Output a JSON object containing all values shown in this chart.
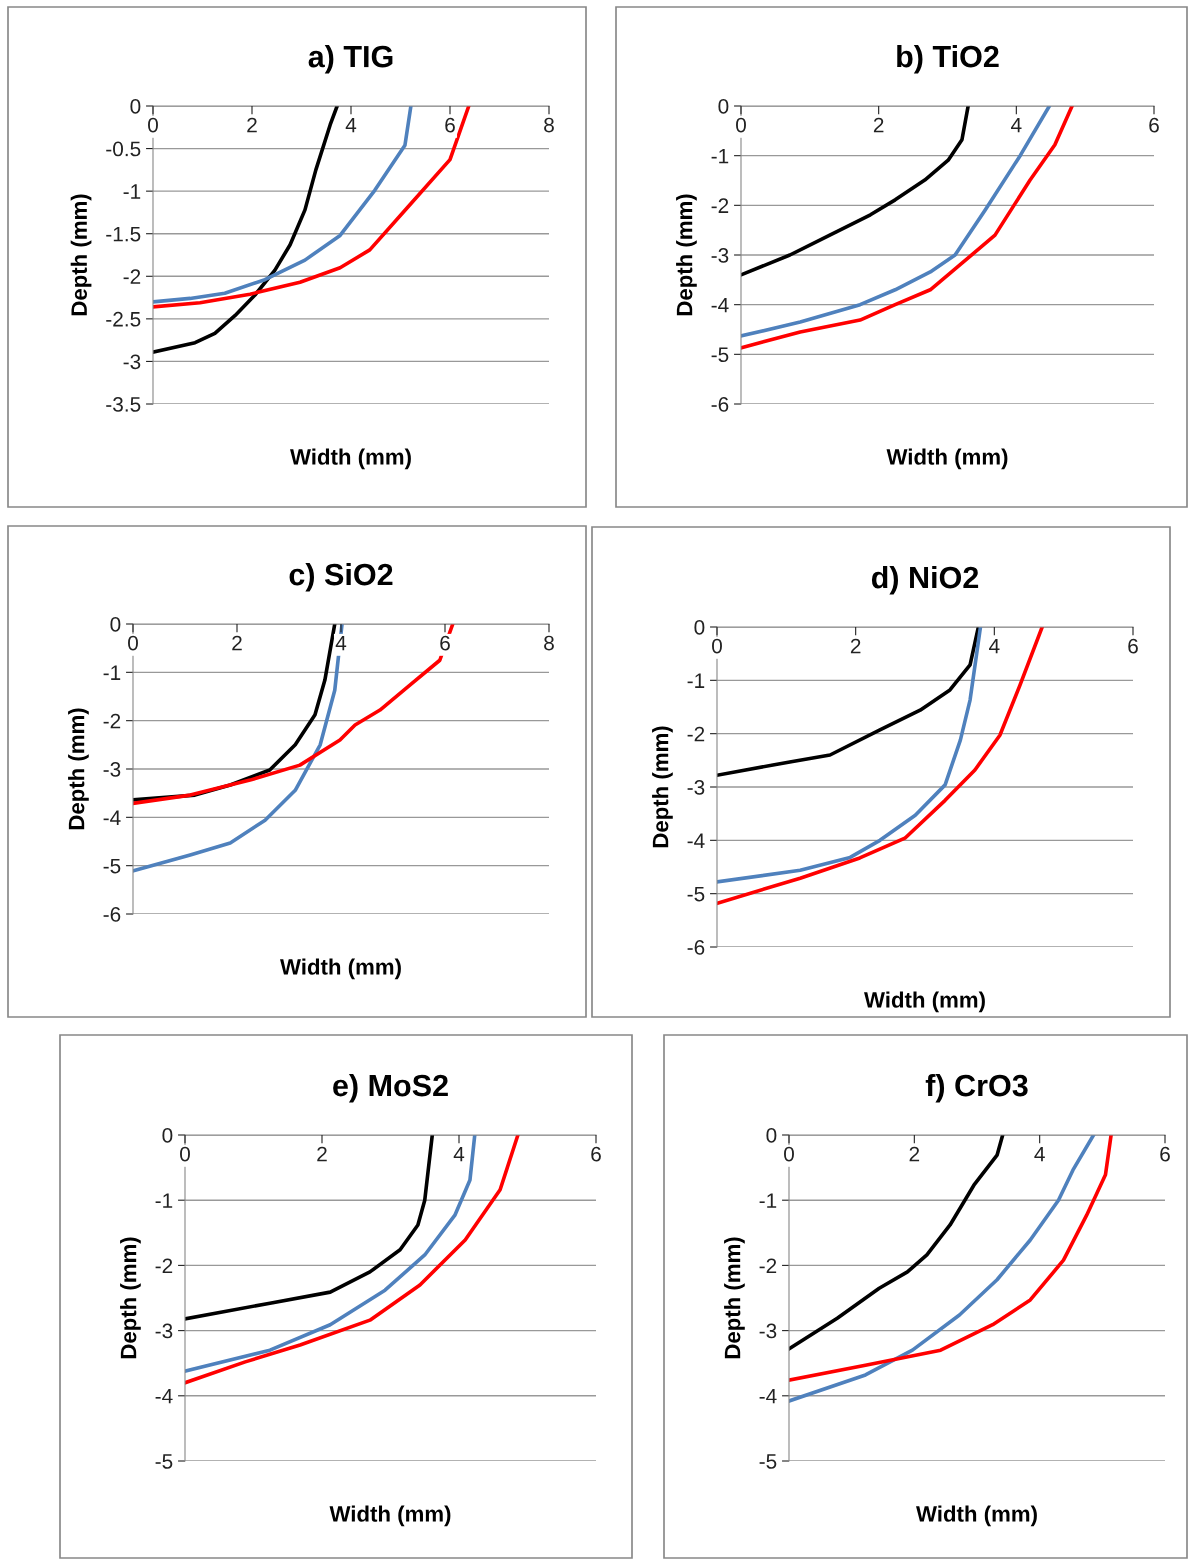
{
  "chart_data": [
    {
      "type": "line",
      "title": "a) TIG",
      "xlabel": "Width (mm)",
      "ylabel": "Depth (mm)",
      "xlim": [
        0,
        8
      ],
      "xticks": [
        0,
        2,
        4,
        6,
        8
      ],
      "ylim": [
        -3.5,
        0
      ],
      "yticks": [
        -3.5,
        -3,
        -2.5,
        -2,
        -1.5,
        -1,
        -0.5,
        0
      ],
      "grid": "y",
      "series": [
        {
          "color": "#000000",
          "x": [
            3.72,
            3.58,
            3.29,
            3.07,
            2.77,
            2.46,
            2.06,
            1.66,
            1.25,
            0.85,
            0
          ],
          "values": [
            0,
            -0.22,
            -0.75,
            -1.22,
            -1.63,
            -1.93,
            -2.22,
            -2.46,
            -2.67,
            -2.78,
            -2.89
          ]
        },
        {
          "color": "#4f81bd",
          "x": [
            5.21,
            5.09,
            4.48,
            3.78,
            3.07,
            2.26,
            1.45,
            0.75,
            0
          ],
          "values": [
            0,
            -0.46,
            -0.99,
            -1.52,
            -1.81,
            -2.04,
            -2.2,
            -2.26,
            -2.3
          ]
        },
        {
          "color": "#ff0000",
          "x": [
            6.38,
            6.0,
            5.19,
            4.38,
            3.78,
            2.97,
            1.96,
            0.95,
            0
          ],
          "values": [
            0,
            -0.63,
            -1.16,
            -1.69,
            -1.9,
            -2.07,
            -2.21,
            -2.31,
            -2.36
          ]
        }
      ]
    },
    {
      "type": "line",
      "title": "b) TiO2",
      "xlabel": "Width (mm)",
      "ylabel": "Depth (mm)",
      "xlim": [
        0,
        6
      ],
      "xticks": [
        0,
        2,
        4,
        6
      ],
      "ylim": [
        -6,
        0
      ],
      "yticks": [
        -6,
        -5,
        -4,
        -3,
        -2,
        -1,
        0
      ],
      "grid": "y",
      "series": [
        {
          "color": "#000000",
          "x": [
            3.3,
            3.21,
            3.01,
            2.67,
            2.24,
            1.88,
            1.29,
            0.71,
            0
          ],
          "values": [
            0,
            -0.68,
            -1.09,
            -1.49,
            -1.89,
            -2.19,
            -2.6,
            -3.0,
            -3.4
          ]
        },
        {
          "color": "#4f81bd",
          "x": [
            4.48,
            4.06,
            3.55,
            3.11,
            2.75,
            2.24,
            1.73,
            0.86,
            0
          ],
          "values": [
            0,
            -0.99,
            -2.09,
            -3.0,
            -3.34,
            -3.7,
            -4.0,
            -4.35,
            -4.63
          ]
        },
        {
          "color": "#ff0000",
          "x": [
            4.81,
            4.56,
            4.2,
            3.69,
            3.18,
            2.75,
            2.24,
            1.73,
            0.86,
            0
          ],
          "values": [
            0,
            -0.78,
            -1.49,
            -2.6,
            -3.2,
            -3.7,
            -4.0,
            -4.31,
            -4.55,
            -4.87
          ]
        }
      ]
    },
    {
      "type": "line",
      "title": "c) SiO2",
      "xlabel": "Width (mm)",
      "ylabel": "Depth (mm)",
      "xlim": [
        0,
        8
      ],
      "xticks": [
        0,
        2,
        4,
        6,
        8
      ],
      "ylim": [
        -6,
        0
      ],
      "yticks": [
        -6,
        -5,
        -4,
        -3,
        -2,
        -1,
        0
      ],
      "grid": "y",
      "series": [
        {
          "color": "#000000",
          "x": [
            3.88,
            3.69,
            3.5,
            3.12,
            2.63,
            1.87,
            1.19,
            0
          ],
          "values": [
            0,
            -1.16,
            -1.88,
            -2.5,
            -3.02,
            -3.33,
            -3.54,
            -3.64
          ]
        },
        {
          "color": "#4f81bd",
          "x": [
            4.02,
            3.88,
            3.6,
            3.12,
            2.54,
            1.87,
            1.1,
            0
          ],
          "values": [
            0,
            -1.37,
            -2.5,
            -3.44,
            -4.06,
            -4.53,
            -4.78,
            -5.11
          ]
        },
        {
          "color": "#ff0000",
          "x": [
            6.15,
            5.9,
            5.33,
            4.75,
            4.27,
            3.98,
            3.21,
            2.25,
            1.1,
            0
          ],
          "values": [
            0,
            -0.75,
            -1.26,
            -1.78,
            -2.09,
            -2.4,
            -2.92,
            -3.23,
            -3.54,
            -3.71
          ]
        }
      ]
    },
    {
      "type": "line",
      "title": "d) NiO2",
      "xlabel": "Width (mm)",
      "ylabel": "Depth (mm)",
      "xlim": [
        0,
        6
      ],
      "xticks": [
        0,
        2,
        4,
        6
      ],
      "ylim": [
        -6,
        0
      ],
      "yticks": [
        -6,
        -5,
        -4,
        -3,
        -2,
        -1,
        0
      ],
      "grid": "y",
      "series": [
        {
          "color": "#000000",
          "x": [
            3.77,
            3.65,
            3.36,
            2.93,
            2.35,
            1.63,
            1.05,
            0
          ],
          "values": [
            0,
            -0.71,
            -1.18,
            -1.56,
            -1.93,
            -2.4,
            -2.53,
            -2.78
          ]
        },
        {
          "color": "#4f81bd",
          "x": [
            3.8,
            3.65,
            3.51,
            3.29,
            2.86,
            2.35,
            1.92,
            1.2,
            0
          ],
          "values": [
            0,
            -1.37,
            -2.12,
            -2.96,
            -3.53,
            -4.0,
            -4.32,
            -4.56,
            -4.78
          ]
        },
        {
          "color": "#ff0000",
          "x": [
            4.69,
            4.37,
            4.08,
            3.72,
            3.29,
            2.71,
            2.06,
            1.2,
            0
          ],
          "values": [
            0,
            -1.09,
            -2.03,
            -2.68,
            -3.25,
            -3.96,
            -4.33,
            -4.71,
            -5.18
          ]
        }
      ]
    },
    {
      "type": "line",
      "title": "e) MoS2",
      "xlabel": "Width (mm)",
      "ylabel": "Depth (mm)",
      "xlim": [
        0,
        6
      ],
      "xticks": [
        0,
        2,
        4,
        6
      ],
      "ylim": [
        -5,
        0
      ],
      "yticks": [
        -5,
        -4,
        -3,
        -2,
        -1,
        0
      ],
      "grid": "y",
      "series": [
        {
          "color": "#000000",
          "x": [
            3.61,
            3.5,
            3.4,
            3.14,
            2.7,
            2.12,
            1.24,
            0
          ],
          "values": [
            0,
            -1.0,
            -1.38,
            -1.76,
            -2.1,
            -2.41,
            -2.58,
            -2.82
          ]
        },
        {
          "color": "#4f81bd",
          "x": [
            4.23,
            4.16,
            3.94,
            3.5,
            2.92,
            2.12,
            1.24,
            0
          ],
          "values": [
            0,
            -0.69,
            -1.23,
            -1.84,
            -2.38,
            -2.91,
            -3.3,
            -3.62
          ]
        },
        {
          "color": "#ff0000",
          "x": [
            4.86,
            4.6,
            4.09,
            3.43,
            2.7,
            1.68,
            0.88,
            0
          ],
          "values": [
            0,
            -0.84,
            -1.61,
            -2.3,
            -2.84,
            -3.22,
            -3.48,
            -3.8
          ]
        }
      ]
    },
    {
      "type": "line",
      "title": "f) CrO3",
      "xlabel": "Width (mm)",
      "ylabel": "Depth (mm)",
      "xlim": [
        0,
        6
      ],
      "xticks": [
        0,
        2,
        4,
        6
      ],
      "ylim": [
        -5,
        0
      ],
      "yticks": [
        -5,
        -4,
        -3,
        -2,
        -1,
        0
      ],
      "grid": "y",
      "series": [
        {
          "color": "#000000",
          "x": [
            3.41,
            3.32,
            2.95,
            2.57,
            2.2,
            1.89,
            1.44,
            0.77,
            0
          ],
          "values": [
            0,
            -0.31,
            -0.77,
            -1.38,
            -1.84,
            -2.1,
            -2.35,
            -2.81,
            -3.28
          ]
        },
        {
          "color": "#4f81bd",
          "x": [
            4.86,
            4.53,
            4.3,
            3.85,
            3.32,
            2.72,
            1.97,
            1.22,
            0
          ],
          "values": [
            0,
            -0.54,
            -1.0,
            -1.61,
            -2.22,
            -2.76,
            -3.3,
            -3.68,
            -4.08
          ]
        },
        {
          "color": "#ff0000",
          "x": [
            5.14,
            5.05,
            4.75,
            4.38,
            3.85,
            3.25,
            2.42,
            1.22,
            0
          ],
          "values": [
            0,
            -0.61,
            -1.23,
            -1.92,
            -2.53,
            -2.91,
            -3.3,
            -3.53,
            -3.76
          ]
        }
      ]
    }
  ]
}
